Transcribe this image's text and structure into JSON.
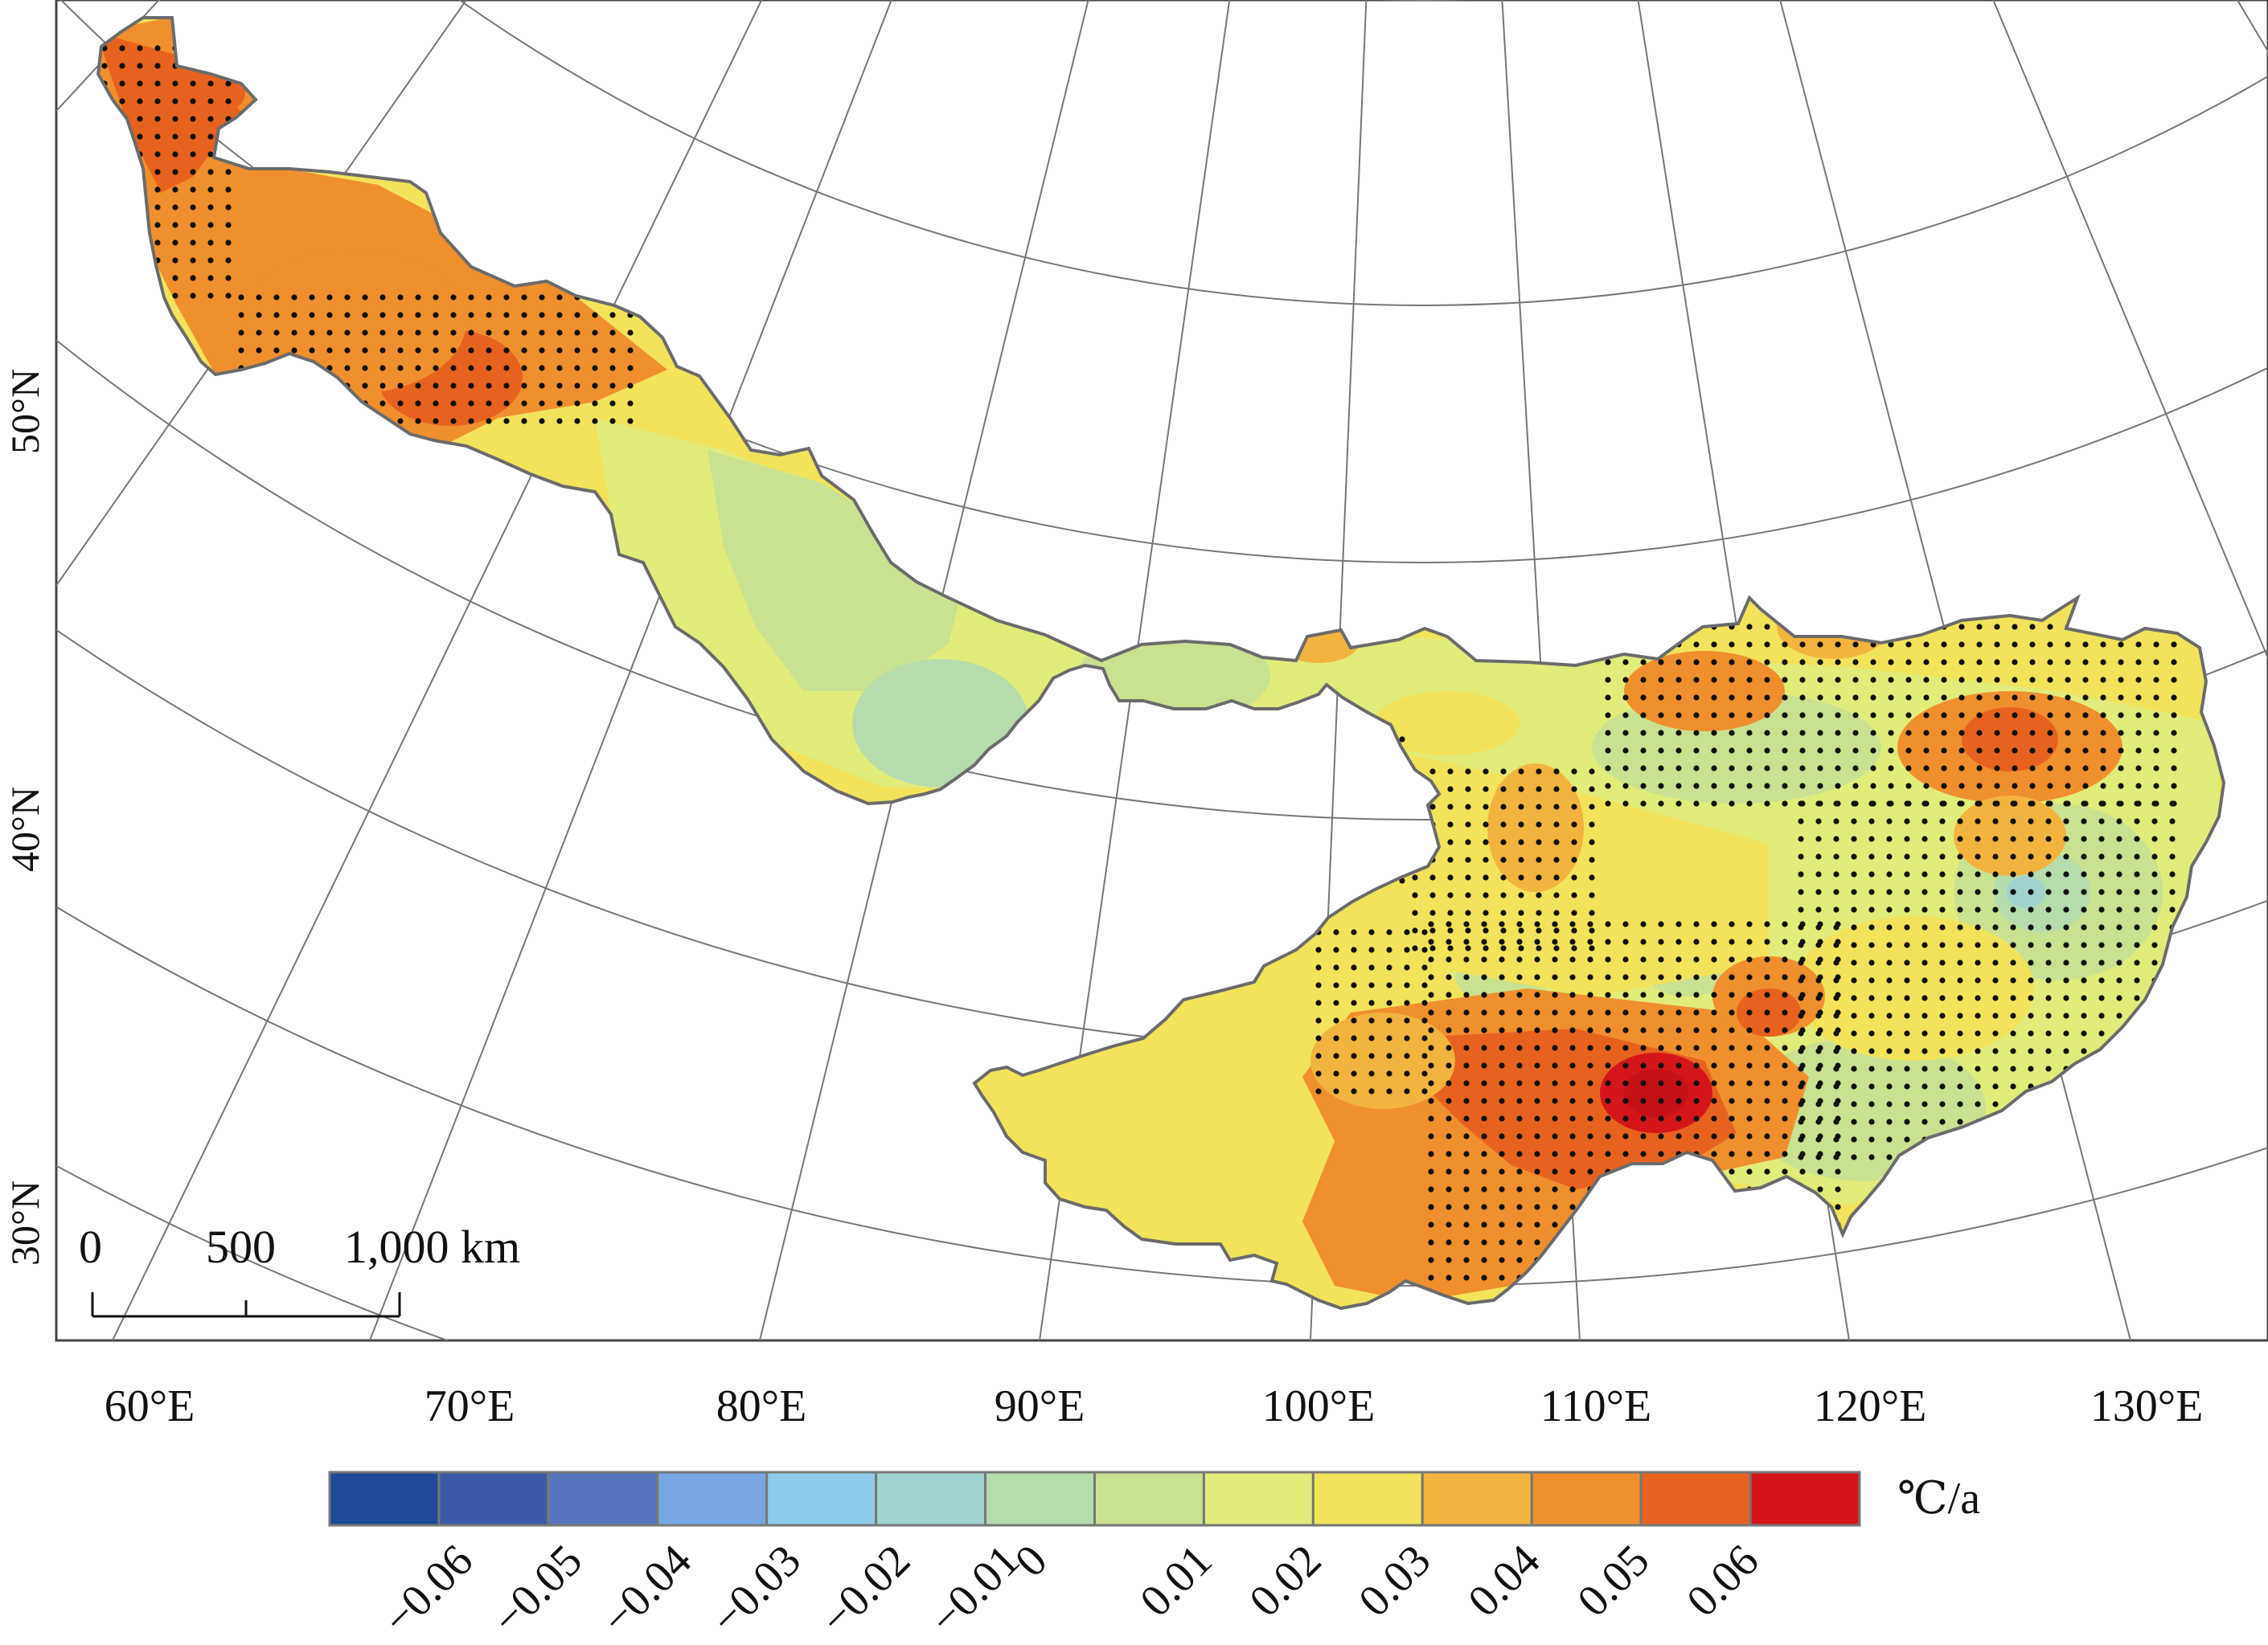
{
  "map": {
    "lon_labels": [
      "60°E",
      "70°E",
      "80°E",
      "90°E",
      "100°E",
      "110°E",
      "120°E",
      "130°E"
    ],
    "lat_labels": [
      "50°N",
      "40°N",
      "30°N"
    ],
    "scale_bar": {
      "ticks": [
        "0",
        "500",
        "1,000 km"
      ]
    }
  },
  "legend": {
    "unit": "℃/a",
    "labels": [
      "−0.06",
      "−0.05",
      "−0.04",
      "−0.03",
      "−0.02",
      "−0.01",
      "0",
      "0.01",
      "0.02",
      "0.03",
      "0.04",
      "0.05",
      "0.06"
    ],
    "colors": [
      "#1f4a99",
      "#3a5aa8",
      "#5676c0",
      "#77a6e3",
      "#8ecbe8",
      "#a0d3cf",
      "#b6dcae",
      "#c9e291",
      "#e2ec7a",
      "#f2e35b",
      "#f3b43f",
      "#f08f2e",
      "#e8621f",
      "#d4161a"
    ]
  },
  "colors": {
    "warm_dark": "#e8621f",
    "warm": "#f08f2e",
    "warm_light": "#f3b43f",
    "yellow": "#f2e35b",
    "yellow_green": "#e2ec7a",
    "light_green": "#c9e291",
    "green": "#b6dcae",
    "teal": "#a0d3cf",
    "red": "#d4161a"
  }
}
